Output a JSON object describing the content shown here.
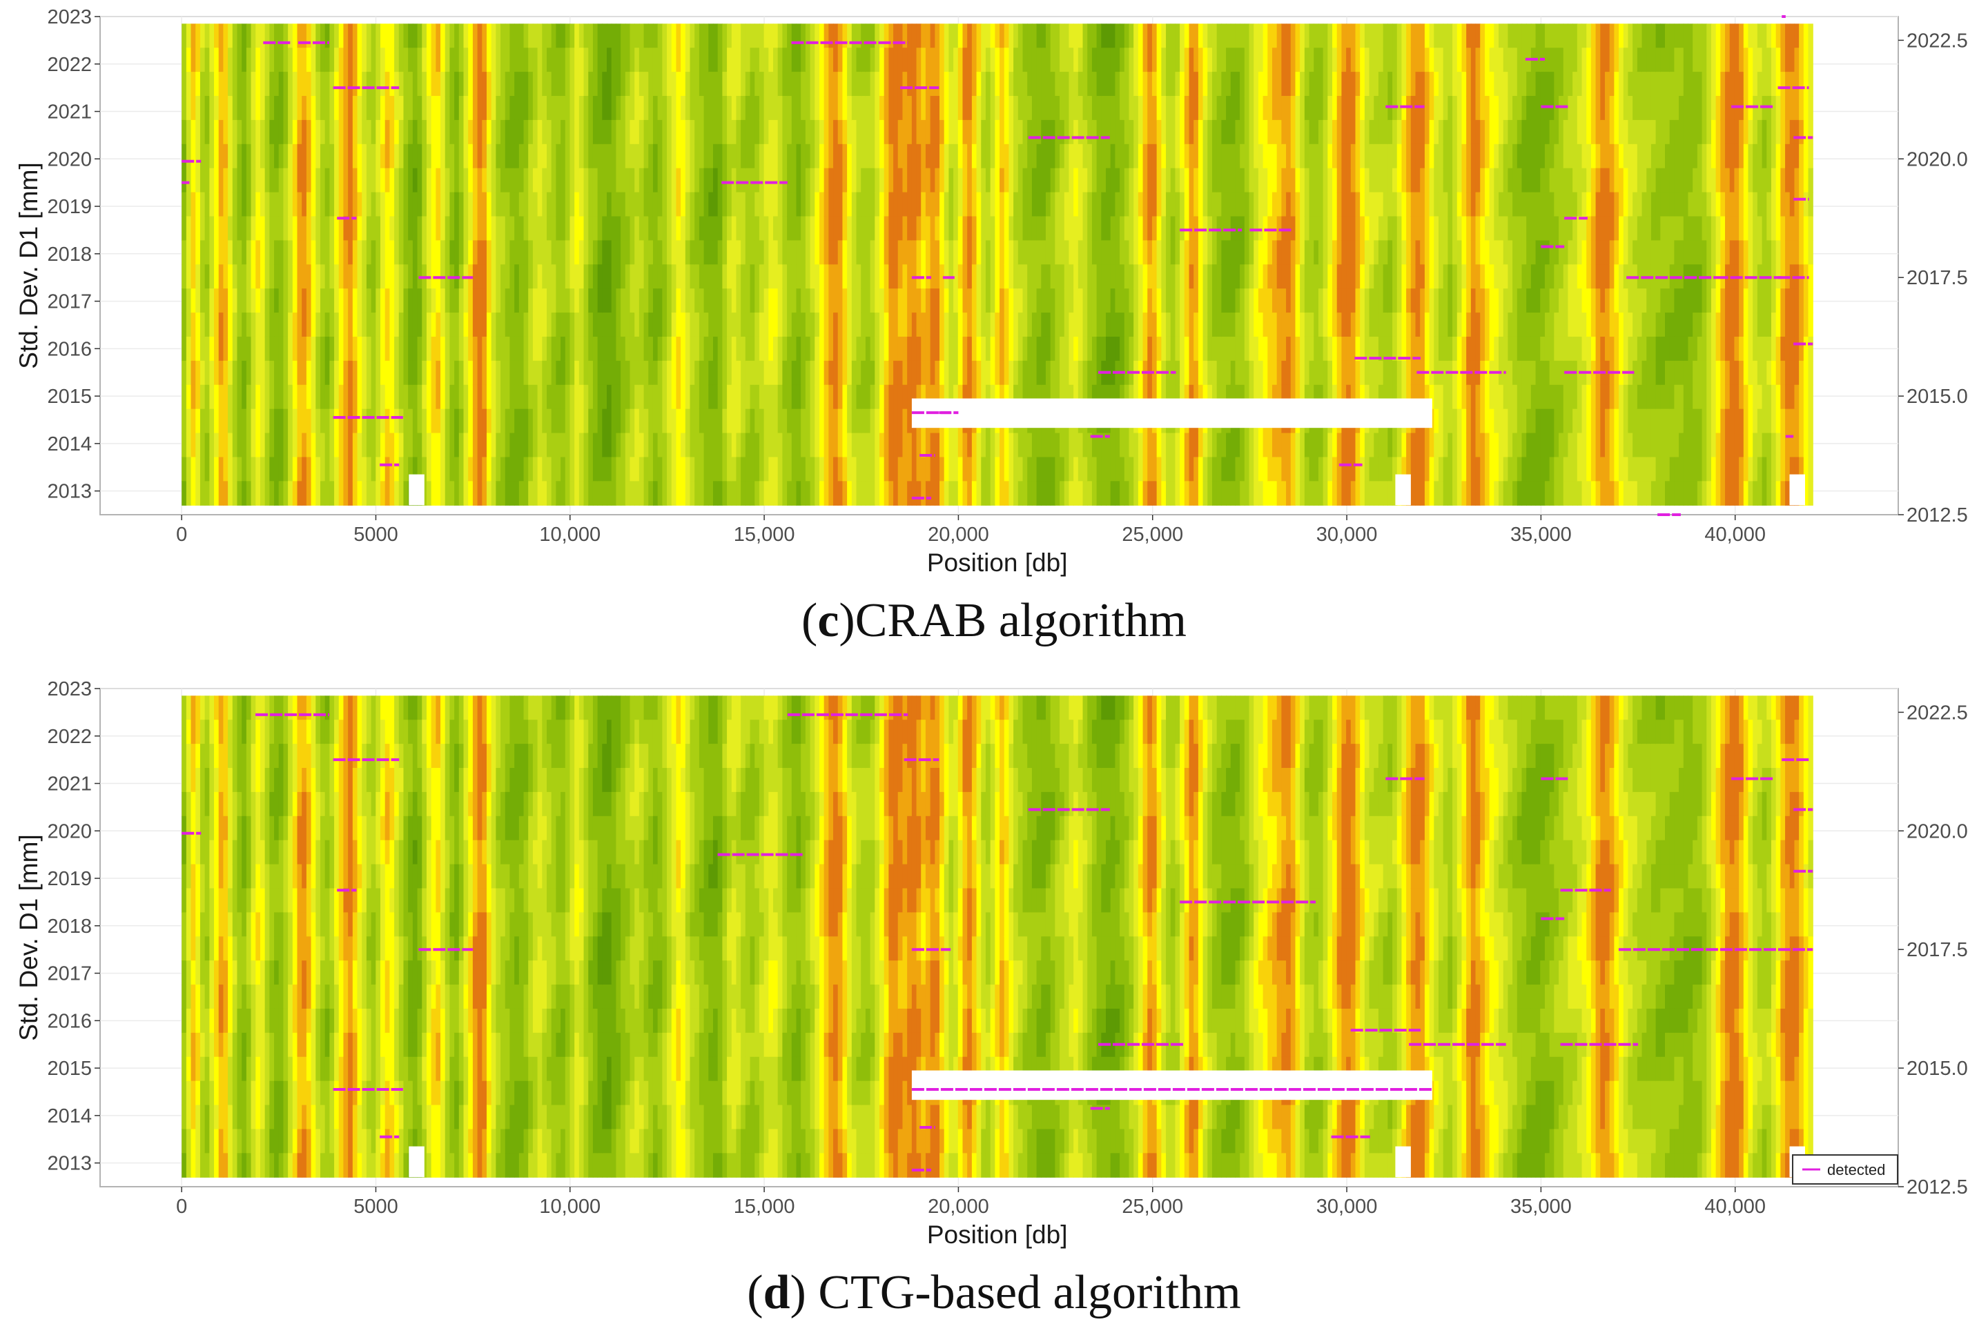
{
  "palette": {
    "levels": [
      "#4e8a03",
      "#5d9a04",
      "#74ad06",
      "#8fbe0a",
      "#aacf12",
      "#c8df1c",
      "#e6ee20",
      "#ffff00",
      "#f9d20a",
      "#f0a50e",
      "#e27712"
    ],
    "gap": "#ffffff",
    "detected": "#e020e0",
    "panel_border": "#b3b3b3"
  },
  "field_profile": [
    0.35,
    0.55,
    0.75,
    0.65,
    0.45,
    0.4,
    0.55,
    0.7,
    0.85,
    0.8,
    0.6,
    0.45,
    0.35,
    0.3,
    0.4,
    0.55,
    0.65,
    0.6,
    0.45,
    0.35,
    0.3,
    0.32,
    0.4,
    0.55,
    0.7,
    0.85,
    0.9,
    0.8,
    0.65,
    0.5,
    0.4,
    0.35,
    0.45,
    0.6,
    0.75,
    0.85,
    0.95,
    0.8,
    0.65,
    0.55,
    0.45,
    0.4,
    0.5,
    0.65,
    0.75,
    0.7,
    0.55,
    0.45,
    0.35,
    0.28,
    0.25,
    0.3,
    0.45,
    0.6,
    0.7,
    0.75,
    0.6,
    0.45,
    0.35,
    0.3,
    0.4,
    0.55,
    0.7,
    0.85,
    0.95,
    0.9,
    0.7,
    0.55,
    0.45,
    0.4,
    0.35,
    0.3,
    0.28,
    0.3,
    0.35,
    0.45,
    0.5,
    0.55,
    0.5,
    0.45,
    0.4,
    0.35,
    0.33,
    0.4,
    0.5,
    0.6,
    0.55,
    0.45,
    0.35,
    0.3,
    0.25,
    0.22,
    0.2,
    0.25,
    0.3,
    0.35,
    0.4,
    0.45,
    0.5,
    0.45,
    0.4,
    0.35,
    0.3,
    0.35,
    0.4,
    0.5,
    0.6,
    0.7,
    0.65,
    0.55,
    0.45,
    0.4,
    0.35,
    0.3,
    0.28,
    0.25,
    0.3,
    0.4,
    0.5,
    0.55,
    0.5,
    0.45,
    0.4,
    0.38,
    0.42,
    0.48,
    0.55,
    0.6,
    0.58,
    0.5,
    0.42,
    0.36,
    0.32,
    0.3,
    0.35,
    0.42,
    0.5,
    0.6,
    0.7,
    0.8,
    0.9,
    0.95,
    0.88,
    0.75,
    0.6,
    0.5,
    0.45,
    0.42,
    0.4,
    0.45,
    0.55,
    0.65,
    0.8,
    0.92,
    0.95,
    0.9,
    0.85,
    0.92,
    0.95,
    0.88,
    0.8,
    0.85,
    0.92,
    0.9,
    0.75,
    0.6,
    0.5,
    0.55,
    0.7,
    0.85,
    0.92,
    0.8,
    0.65,
    0.5,
    0.45,
    0.55,
    0.7,
    0.8,
    0.72,
    0.6,
    0.5,
    0.45,
    0.4,
    0.35,
    0.33,
    0.3,
    0.28,
    0.3,
    0.35,
    0.4,
    0.45,
    0.5,
    0.55,
    0.6,
    0.55,
    0.48,
    0.4,
    0.35,
    0.3,
    0.28,
    0.26,
    0.25,
    0.28,
    0.32,
    0.38,
    0.45,
    0.55,
    0.65,
    0.8,
    0.9,
    0.85,
    0.7,
    0.55,
    0.45,
    0.42,
    0.48,
    0.6,
    0.75,
    0.9,
    0.85,
    0.7,
    0.55,
    0.45,
    0.38,
    0.35,
    0.32,
    0.3,
    0.28,
    0.3,
    0.35,
    0.42,
    0.5,
    0.58,
    0.65,
    0.7,
    0.75,
    0.8,
    0.85,
    0.9,
    0.92,
    0.85,
    0.7,
    0.55,
    0.45,
    0.4,
    0.38,
    0.4,
    0.48,
    0.6,
    0.72,
    0.85,
    0.95,
    0.98,
    0.92,
    0.8,
    0.65,
    0.55,
    0.5,
    0.48,
    0.45,
    0.42,
    0.4,
    0.45,
    0.55,
    0.68,
    0.8,
    0.9,
    0.95,
    0.9,
    0.78,
    0.65,
    0.55,
    0.5,
    0.45,
    0.42,
    0.5,
    0.6,
    0.72,
    0.85,
    0.95,
    0.9,
    0.8,
    0.72,
    0.65,
    0.6,
    0.55,
    0.5,
    0.45,
    0.4,
    0.36,
    0.33,
    0.3,
    0.28,
    0.27,
    0.28,
    0.3,
    0.34,
    0.38,
    0.42,
    0.45,
    0.48,
    0.5,
    0.55,
    0.6,
    0.68,
    0.78,
    0.88,
    0.95,
    0.92,
    0.85,
    0.75,
    0.65,
    0.58,
    0.52,
    0.48,
    0.45,
    0.42,
    0.4,
    0.38,
    0.36,
    0.35,
    0.34,
    0.33,
    0.32,
    0.31,
    0.3,
    0.3,
    0.32,
    0.35,
    0.4,
    0.48,
    0.58,
    0.7,
    0.82,
    0.92,
    0.96,
    0.94,
    0.85,
    0.72,
    0.6,
    0.5,
    0.45,
    0.42,
    0.45,
    0.55,
    0.68,
    0.82,
    0.92,
    0.95,
    0.9,
    0.8,
    0.7,
    0.6
  ],
  "panels": [
    {
      "id": "c",
      "caption_letter": "c",
      "caption_rest": ")CRAB algorithm",
      "caption_open": "(",
      "chart_data": {
        "type": "heatmap",
        "xlabel": "Position [db]",
        "ylabel": "Std. Dev. D1 [mm]",
        "xlim": [
          -2100,
          44200
        ],
        "ylim": [
          2012.5,
          2023.0
        ],
        "y2lim": [
          2012.5,
          2023.0
        ],
        "field_x_range": [
          0,
          42000
        ],
        "x_tick_values": [
          0,
          5000,
          10000,
          15000,
          20000,
          25000,
          30000,
          35000,
          40000
        ],
        "x_tick_labels": [
          "0",
          "5000",
          "10,000",
          "15,000",
          "20,000",
          "25,000",
          "30,000",
          "35,000",
          "40,000"
        ],
        "y_tick_values": [
          2013,
          2014,
          2015,
          2016,
          2017,
          2018,
          2019,
          2020,
          2021,
          2022,
          2023
        ],
        "y_tick_labels": [
          "2013",
          "2014",
          "2015",
          "2016",
          "2017",
          "2018",
          "2019",
          "2020",
          "2021",
          "2022",
          "2023"
        ],
        "y2_tick_values": [
          2012.5,
          2015.0,
          2017.5,
          2020.0,
          2022.5
        ],
        "y2_tick_labels": [
          "2012.5",
          "2015.0",
          "2017.5",
          "2020.0",
          "2022.5"
        ],
        "gaps": [
          {
            "x0": 18800,
            "x1": 32200,
            "y0": 2014.33,
            "y1": 2014.95
          },
          {
            "x0": 5850,
            "x1": 6250,
            "y0": 2012.7,
            "y1": 2013.35
          },
          {
            "x0": 31250,
            "x1": 31650,
            "y0": 2012.7,
            "y1": 2013.35
          },
          {
            "x0": 41400,
            "x1": 41800,
            "y0": 2012.7,
            "y1": 2013.35
          }
        ],
        "detected": [
          [
            0,
            500,
            2019.95
          ],
          [
            0,
            200,
            2019.5
          ],
          [
            2100,
            2800,
            2022.45
          ],
          [
            3000,
            3800,
            2022.45
          ],
          [
            3900,
            5600,
            2021.5
          ],
          [
            3900,
            5700,
            2014.55
          ],
          [
            4000,
            4500,
            2018.75
          ],
          [
            5100,
            5600,
            2013.55
          ],
          [
            6100,
            7500,
            2017.5
          ],
          [
            13900,
            15600,
            2019.5
          ],
          [
            15700,
            18700,
            2022.45
          ],
          [
            18500,
            19500,
            2021.5
          ],
          [
            18800,
            19300,
            2017.5
          ],
          [
            19600,
            19900,
            2017.5
          ],
          [
            18800,
            19800,
            2014.65
          ],
          [
            19500,
            20000,
            2014.65
          ],
          [
            19000,
            19400,
            2013.75
          ],
          [
            18800,
            19300,
            2012.85
          ],
          [
            21800,
            23900,
            2020.45
          ],
          [
            23400,
            23900,
            2014.15
          ],
          [
            23600,
            25600,
            2015.5
          ],
          [
            25700,
            27300,
            2018.5
          ],
          [
            27500,
            28600,
            2018.5
          ],
          [
            29800,
            30400,
            2013.55
          ],
          [
            30200,
            31900,
            2015.8
          ],
          [
            31000,
            32000,
            2021.1
          ],
          [
            31800,
            34100,
            2015.5
          ],
          [
            34600,
            35100,
            2022.1
          ],
          [
            35000,
            35700,
            2021.1
          ],
          [
            35000,
            35600,
            2018.15
          ],
          [
            35600,
            36200,
            2018.75
          ],
          [
            35600,
            37400,
            2015.5
          ],
          [
            37200,
            39500,
            2017.5
          ],
          [
            38000,
            38600,
            2012.5
          ],
          [
            39500,
            41200,
            2017.5
          ],
          [
            39900,
            41000,
            2021.1
          ],
          [
            41100,
            41900,
            2021.5
          ],
          [
            41100,
            41900,
            2017.5
          ],
          [
            41500,
            42000,
            2020.45
          ],
          [
            41500,
            41900,
            2019.15
          ],
          [
            41500,
            42000,
            2016.1
          ],
          [
            41300,
            41500,
            2014.15
          ],
          [
            41200,
            41300,
            2023.0
          ]
        ]
      }
    },
    {
      "id": "d",
      "caption_letter": "d",
      "caption_rest": ") CTG-based algorithm",
      "caption_open": "(",
      "chart_data": {
        "type": "heatmap",
        "xlabel": "Position [db]",
        "ylabel": "Std. Dev. D1 [mm]",
        "xlim": [
          -2100,
          44200
        ],
        "ylim": [
          2012.5,
          2023.0
        ],
        "y2lim": [
          2012.5,
          2023.0
        ],
        "field_x_range": [
          0,
          42000
        ],
        "x_tick_values": [
          0,
          5000,
          10000,
          15000,
          20000,
          25000,
          30000,
          35000,
          40000
        ],
        "x_tick_labels": [
          "0",
          "5000",
          "10,000",
          "15,000",
          "20,000",
          "25,000",
          "30,000",
          "35,000",
          "40,000"
        ],
        "y_tick_values": [
          2013,
          2014,
          2015,
          2016,
          2017,
          2018,
          2019,
          2020,
          2021,
          2022,
          2023
        ],
        "y_tick_labels": [
          "2013",
          "2014",
          "2015",
          "2016",
          "2017",
          "2018",
          "2019",
          "2020",
          "2021",
          "2022",
          "2023"
        ],
        "y2_tick_values": [
          2012.5,
          2015.0,
          2017.5,
          2020.0,
          2022.5
        ],
        "y2_tick_labels": [
          "2012.5",
          "2015.0",
          "2017.5",
          "2020.0",
          "2022.5"
        ],
        "gaps": [
          {
            "x0": 18800,
            "x1": 32200,
            "y0": 2014.33,
            "y1": 2014.95
          },
          {
            "x0": 5850,
            "x1": 6250,
            "y0": 2012.7,
            "y1": 2013.35
          },
          {
            "x0": 31250,
            "x1": 31650,
            "y0": 2012.7,
            "y1": 2013.35
          },
          {
            "x0": 41400,
            "x1": 41800,
            "y0": 2012.7,
            "y1": 2013.35
          }
        ],
        "detected": [
          [
            0,
            500,
            2019.95
          ],
          [
            1900,
            3800,
            2022.45
          ],
          [
            3900,
            5600,
            2021.5
          ],
          [
            3900,
            5700,
            2014.55
          ],
          [
            4000,
            4500,
            2018.75
          ],
          [
            5100,
            5600,
            2013.55
          ],
          [
            6100,
            7500,
            2017.5
          ],
          [
            13800,
            16000,
            2019.5
          ],
          [
            15600,
            18700,
            2022.45
          ],
          [
            18600,
            19500,
            2021.5
          ],
          [
            18800,
            19800,
            2017.5
          ],
          [
            18800,
            32200,
            2014.55
          ],
          [
            19000,
            19400,
            2013.75
          ],
          [
            18800,
            19300,
            2012.85
          ],
          [
            21800,
            23900,
            2020.45
          ],
          [
            23400,
            23900,
            2014.15
          ],
          [
            23600,
            25800,
            2015.5
          ],
          [
            25700,
            29200,
            2018.5
          ],
          [
            29600,
            30600,
            2013.55
          ],
          [
            30100,
            31900,
            2015.8
          ],
          [
            31000,
            32000,
            2021.1
          ],
          [
            31600,
            34100,
            2015.5
          ],
          [
            35000,
            35700,
            2021.1
          ],
          [
            35000,
            35600,
            2018.15
          ],
          [
            35500,
            36800,
            2018.75
          ],
          [
            35500,
            37500,
            2015.5
          ],
          [
            37000,
            42000,
            2017.5
          ],
          [
            39900,
            41000,
            2021.1
          ],
          [
            41200,
            41900,
            2021.5
          ],
          [
            41500,
            42000,
            2020.45
          ],
          [
            41500,
            42000,
            2019.15
          ]
        ]
      }
    }
  ],
  "legend": {
    "label": "detected"
  }
}
